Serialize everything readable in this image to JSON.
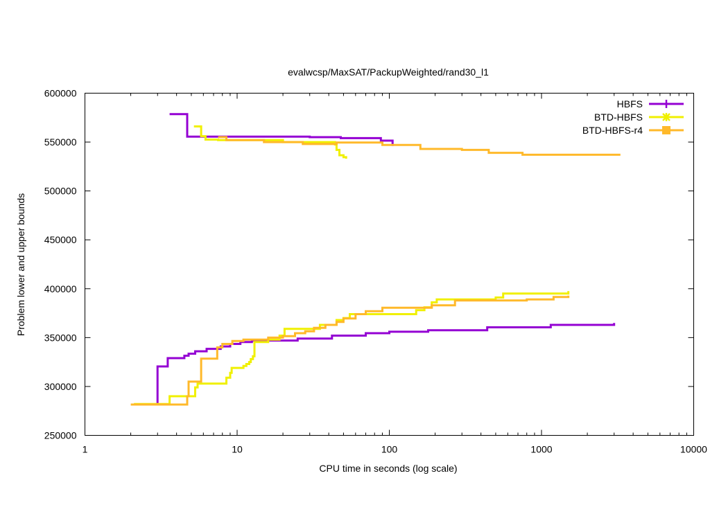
{
  "chart_data": {
    "type": "line",
    "title": "evalwcsp/MaxSAT/PackupWeighted/rand30_l1",
    "xlabel": "CPU time in seconds (log scale)",
    "ylabel": "Problem lower and upper bounds",
    "xscale": "log",
    "xlim": [
      1,
      10000
    ],
    "ylim": [
      250000,
      600000
    ],
    "x_ticks": [
      1,
      10,
      100,
      1000,
      10000
    ],
    "x_tick_labels": [
      "1",
      "10",
      "100",
      "1000",
      "10000"
    ],
    "y_ticks": [
      250000,
      300000,
      350000,
      400000,
      450000,
      500000,
      550000,
      600000
    ],
    "y_tick_labels": [
      "250000",
      "300000",
      "350000",
      "400000",
      "450000",
      "500000",
      "550000",
      "600000"
    ],
    "grid": false,
    "legend_position": "top-right",
    "series": [
      {
        "name": "HBFS",
        "color": "#9400d3",
        "marker": "plus",
        "upper": [
          [
            3.6,
            578500
          ],
          [
            4.7,
            555500
          ],
          [
            30,
            555000
          ],
          [
            48,
            554000
          ],
          [
            88,
            551500
          ],
          [
            105,
            546000
          ]
        ],
        "lower": [
          [
            2.15,
            281500
          ],
          [
            3.0,
            320500
          ],
          [
            3.5,
            329000
          ],
          [
            4.5,
            331500
          ],
          [
            4.8,
            333500
          ],
          [
            5.3,
            336000
          ],
          [
            6.3,
            338500
          ],
          [
            7.8,
            341000
          ],
          [
            9.0,
            343500
          ],
          [
            10.5,
            345500
          ],
          [
            12.5,
            347000
          ],
          [
            25,
            349000
          ],
          [
            42,
            352000
          ],
          [
            70,
            354500
          ],
          [
            100,
            356000
          ],
          [
            180,
            357500
          ],
          [
            440,
            360500
          ],
          [
            1150,
            363000
          ],
          [
            3000,
            365000
          ]
        ]
      },
      {
        "name": "BTD-HBFS",
        "color": "#f0f000",
        "marker": "star",
        "upper": [
          [
            5.2,
            566000
          ],
          [
            5.8,
            556000
          ],
          [
            6.2,
            552500
          ],
          [
            7.5,
            552000
          ],
          [
            20,
            550000
          ],
          [
            44,
            547500
          ],
          [
            45,
            542000
          ],
          [
            47,
            536500
          ],
          [
            50,
            534500
          ],
          [
            52,
            533000
          ]
        ],
        "lower": [
          [
            2.1,
            282000
          ],
          [
            3.6,
            290000
          ],
          [
            5.3,
            299000
          ],
          [
            5.5,
            303000
          ],
          [
            8.5,
            309000
          ],
          [
            9.0,
            314000
          ],
          [
            9.2,
            319000
          ],
          [
            11,
            321000
          ],
          [
            11.5,
            323000
          ],
          [
            12,
            325000
          ],
          [
            12.3,
            328000
          ],
          [
            12.7,
            331000
          ],
          [
            13,
            345500
          ],
          [
            16,
            348000
          ],
          [
            19,
            352000
          ],
          [
            20.5,
            359000
          ],
          [
            35,
            363000
          ],
          [
            45,
            368000
          ],
          [
            50,
            370000
          ],
          [
            55,
            374000
          ],
          [
            150,
            378000
          ],
          [
            170,
            381000
          ],
          [
            190,
            386000
          ],
          [
            205,
            389000
          ],
          [
            500,
            391000
          ],
          [
            560,
            395000
          ],
          [
            1500,
            397500
          ]
        ]
      },
      {
        "name": "BTD-HBFS-r4",
        "color": "#ffb92a",
        "marker": "square",
        "upper": [
          [
            7.5,
            555000
          ],
          [
            8.5,
            552000
          ],
          [
            15,
            550000
          ],
          [
            27,
            548000
          ],
          [
            45,
            549500
          ],
          [
            90,
            547000
          ],
          [
            160,
            543000
          ],
          [
            300,
            542000
          ],
          [
            450,
            539000
          ],
          [
            750,
            537000
          ],
          [
            3300,
            537000
          ]
        ],
        "lower": [
          [
            2.0,
            281500
          ],
          [
            4.7,
            290000
          ],
          [
            4.8,
            305000
          ],
          [
            5.8,
            328500
          ],
          [
            7.4,
            340000
          ],
          [
            8.0,
            343500
          ],
          [
            9.3,
            346500
          ],
          [
            11,
            348000
          ],
          [
            16,
            350000
          ],
          [
            20,
            351500
          ],
          [
            24,
            354500
          ],
          [
            28,
            356500
          ],
          [
            32,
            360000
          ],
          [
            38,
            363000
          ],
          [
            45,
            366000
          ],
          [
            50,
            369500
          ],
          [
            60,
            374000
          ],
          [
            70,
            377000
          ],
          [
            90,
            380500
          ],
          [
            190,
            383000
          ],
          [
            270,
            388000
          ],
          [
            800,
            389000
          ],
          [
            1200,
            391500
          ],
          [
            1500,
            393000
          ]
        ]
      }
    ]
  }
}
